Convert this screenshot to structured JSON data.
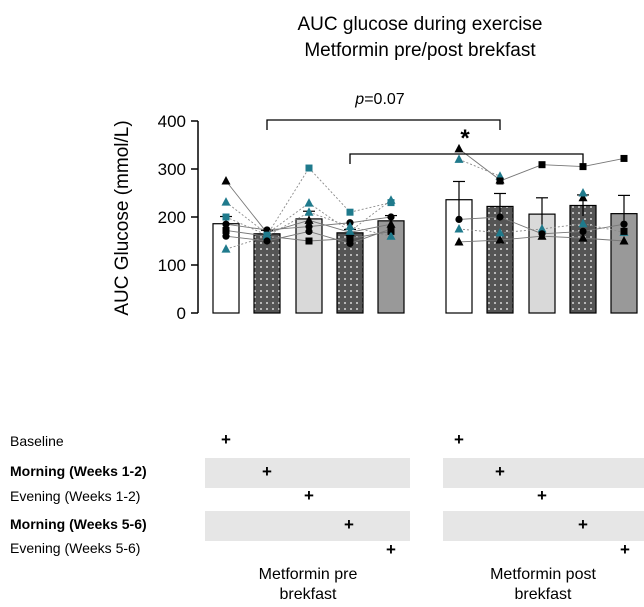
{
  "chart_data": {
    "type": "bar",
    "title": "AUC glucose during exercise",
    "subtitle": "Metformin pre/post brekfast",
    "ylabel": "AUC Glucose (mmol/L)",
    "ylim": [
      0,
      400
    ],
    "yticks": [
      "0",
      "100",
      "200",
      "300",
      "400"
    ],
    "groups": [
      {
        "label_line1": "Metformin pre",
        "label_line2": "brekfast",
        "bars": [
          {
            "condition": "Baseline",
            "mean": 186,
            "sem": 15
          },
          {
            "condition": "Morning (Weeks 1-2)",
            "mean": 165,
            "sem": 7
          },
          {
            "condition": "Evening (Weeks 1-2)",
            "mean": 196,
            "sem": 16
          },
          {
            "condition": "Morning (Weeks 5-6)",
            "mean": 167,
            "sem": 7
          },
          {
            "condition": "Evening (Weeks 5-6)",
            "mean": 192,
            "sem": 11
          }
        ]
      },
      {
        "label_line1": "Metformin post",
        "label_line2": "brekfast",
        "bars": [
          {
            "condition": "Baseline",
            "mean": 236,
            "sem": 38
          },
          {
            "condition": "Morning (Weeks 1-2)",
            "mean": 222,
            "sem": 27
          },
          {
            "condition": "Evening (Weeks 1-2)",
            "mean": 206,
            "sem": 34
          },
          {
            "condition": "Morning (Weeks 5-6)",
            "mean": 224,
            "sem": 22
          },
          {
            "condition": "Evening (Weeks 5-6)",
            "mean": 207,
            "sem": 38
          }
        ]
      }
    ],
    "participants_pre": [
      {
        "marker": "triangle",
        "color": "#000000",
        "values": [
          275,
          167,
          193,
          168,
          185
        ]
      },
      {
        "marker": "triangle",
        "color": "#1f7a8c",
        "values": [
          231,
          165,
          229,
          170,
          235
        ]
      },
      {
        "marker": "circle",
        "color": "#000000",
        "values": [
          185,
          173,
          180,
          188,
          200
        ]
      },
      {
        "marker": "square",
        "color": "#000000",
        "values": [
          172,
          160,
          150,
          155,
          170
        ]
      },
      {
        "marker": "square",
        "color": "#1f7a8c",
        "values": [
          200,
          162,
          302,
          210,
          230
        ]
      },
      {
        "marker": "triangle",
        "color": "#1f7a8c",
        "values": [
          133,
          160,
          210,
          180,
          160
        ]
      },
      {
        "marker": "circle",
        "color": "#000000",
        "values": [
          160,
          150,
          170,
          145,
          175
        ]
      }
    ],
    "participants_post": [
      {
        "marker": "triangle",
        "color": "#000000",
        "values": [
          342,
          277,
          null,
          240,
          null
        ]
      },
      {
        "marker": "triangle",
        "color": "#1f7a8c",
        "values": [
          320,
          285,
          null,
          250,
          null
        ]
      },
      {
        "marker": "square",
        "color": "#000000",
        "values": [
          null,
          275,
          309,
          305,
          322
        ]
      },
      {
        "marker": "triangle",
        "color": "#000000",
        "values": [
          148,
          152,
          160,
          156,
          150
        ]
      },
      {
        "marker": "triangle",
        "color": "#1f7a8c",
        "values": [
          175,
          167,
          175,
          186,
          168
        ]
      },
      {
        "marker": "circle",
        "color": "#000000",
        "values": [
          195,
          200,
          165,
          170,
          185
        ]
      },
      {
        "marker": "square",
        "color": "#000000",
        "values": [
          null,
          null,
          null,
          null,
          170
        ]
      }
    ],
    "annotations": {
      "pvalue_italic": "p",
      "pvalue_rest": "=0.07",
      "star": "*"
    },
    "conditions": [
      {
        "label": "Baseline",
        "bold": false
      },
      {
        "label": "Morning (Weeks 1-2)",
        "bold": true
      },
      {
        "label": "Evening (Weeks 1-2)",
        "bold": false
      },
      {
        "label": "Morning (Weeks 5-6)",
        "bold": true
      },
      {
        "label": "Evening (Weeks 5-6)",
        "bold": false
      }
    ],
    "plus_symbol": "+",
    "colors": {
      "bar_white": "#ffffff",
      "bar_dark": "#555555",
      "bar_light": "#d9d9d9",
      "bar_mid": "#999999",
      "teal": "#1f7a8c",
      "band": "#e6e6e6"
    }
  }
}
